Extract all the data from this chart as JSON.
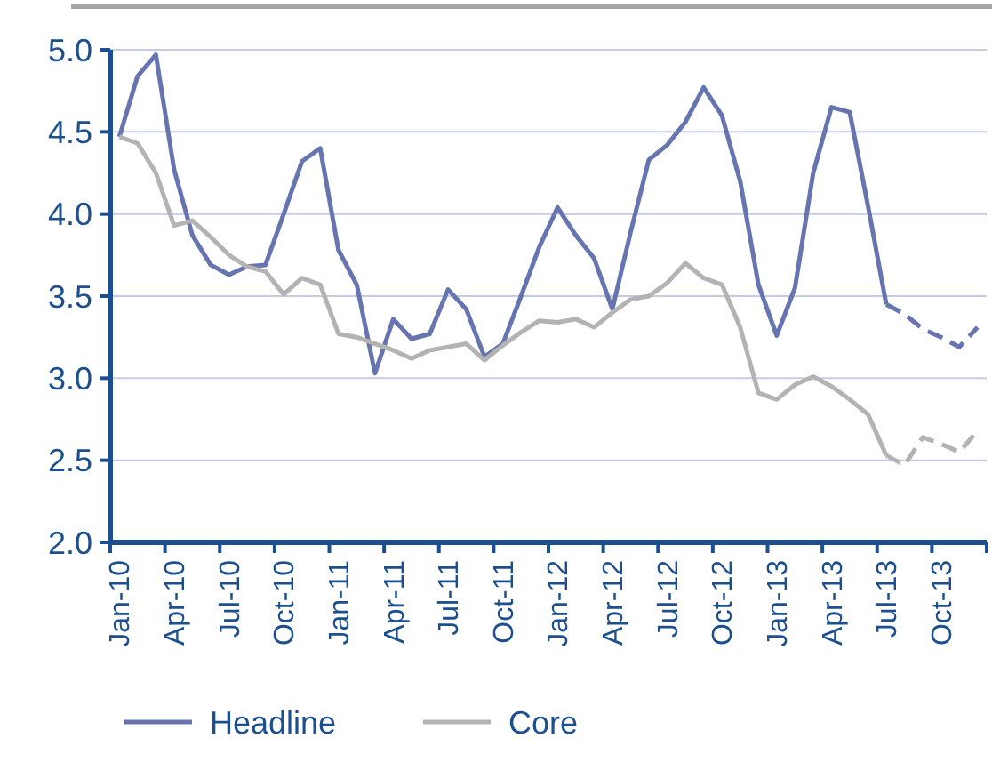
{
  "chart_data": {
    "type": "line",
    "categories": [
      "Jan-10",
      null,
      null,
      "Apr-10",
      null,
      null,
      "Jul-10",
      null,
      null,
      "Oct-10",
      null,
      null,
      "Jan-11",
      null,
      null,
      "Apr-11",
      null,
      null,
      "Jul-11",
      null,
      null,
      "Oct-11",
      null,
      null,
      "Jan-12",
      null,
      null,
      "Apr-12",
      null,
      null,
      "Jul-12",
      null,
      null,
      "Oct-12",
      null,
      null,
      "Jan-13",
      null,
      null,
      "Apr-13",
      null,
      null,
      "Jul-13",
      null,
      null,
      "Oct-13",
      null,
      null
    ],
    "series": [
      {
        "name": "Headline",
        "color": "#6675b0",
        "line_style": "solid",
        "values": [
          4.47,
          4.84,
          4.97,
          4.27,
          3.87,
          3.69,
          3.63,
          3.68,
          3.69,
          4.0,
          4.32,
          4.4,
          3.78,
          3.57,
          3.03,
          3.36,
          3.24,
          3.27,
          3.54,
          3.42,
          3.13,
          3.21,
          3.5,
          3.8,
          4.04,
          3.87,
          3.73,
          3.42,
          3.89,
          4.33,
          4.42,
          4.56,
          4.77,
          4.6,
          4.2,
          3.57,
          3.26,
          3.55,
          4.25,
          4.65,
          4.62,
          4.05,
          3.45,
          null,
          null,
          null,
          null,
          null
        ]
      },
      {
        "color": "#6675b0",
        "line_style": "dashed",
        "values": [
          null,
          null,
          null,
          null,
          null,
          null,
          null,
          null,
          null,
          null,
          null,
          null,
          null,
          null,
          null,
          null,
          null,
          null,
          null,
          null,
          null,
          null,
          null,
          null,
          null,
          null,
          null,
          null,
          null,
          null,
          null,
          null,
          null,
          null,
          null,
          null,
          null,
          null,
          null,
          null,
          null,
          null,
          3.45,
          3.39,
          3.3,
          3.25,
          3.19,
          3.31
        ]
      },
      {
        "name": "Core",
        "color": "#b3b3b3",
        "line_style": "solid",
        "values": [
          4.47,
          4.43,
          4.25,
          3.93,
          3.96,
          3.86,
          3.75,
          3.68,
          3.65,
          3.51,
          3.61,
          3.57,
          3.27,
          3.25,
          3.21,
          3.17,
          3.12,
          3.17,
          3.19,
          3.21,
          3.11,
          3.2,
          3.28,
          3.35,
          3.34,
          3.36,
          3.31,
          3.4,
          3.48,
          3.5,
          3.58,
          3.7,
          3.61,
          3.57,
          3.31,
          2.91,
          2.87,
          2.96,
          3.01,
          2.95,
          2.87,
          2.78,
          2.53,
          null,
          null,
          null,
          null,
          null
        ]
      },
      {
        "color": "#b3b3b3",
        "line_style": "dashed",
        "values": [
          null,
          null,
          null,
          null,
          null,
          null,
          null,
          null,
          null,
          null,
          null,
          null,
          null,
          null,
          null,
          null,
          null,
          null,
          null,
          null,
          null,
          null,
          null,
          null,
          null,
          null,
          null,
          null,
          null,
          null,
          null,
          null,
          null,
          null,
          null,
          null,
          null,
          null,
          null,
          null,
          null,
          null,
          2.53,
          2.47,
          2.64,
          2.6,
          2.55,
          2.68
        ]
      }
    ],
    "ylim": [
      2,
      5
    ],
    "yticks": [
      {
        "value": 2,
        "label": "2.0"
      },
      {
        "value": 2.5,
        "label": "2.5"
      },
      {
        "value": 3,
        "label": "3.0"
      },
      {
        "value": 3.5,
        "label": "3.5"
      },
      {
        "value": 4,
        "label": "4.0"
      },
      {
        "value": 4.5,
        "label": "4.5"
      },
      {
        "value": 5,
        "label": "5.0"
      }
    ],
    "grid": "y",
    "legend": "bottom",
    "marker": "none"
  }
}
